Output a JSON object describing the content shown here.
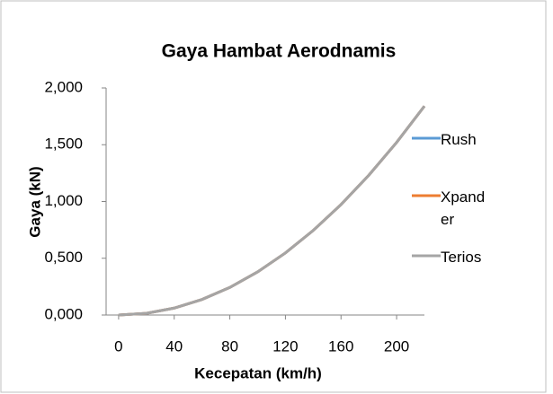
{
  "chart_data": {
    "type": "line",
    "title": "Gaya Hambat Aerodnamis",
    "x_label": "Kecepatan (km/h)",
    "y_label": "Gaya (kN)",
    "x": [
      0,
      20,
      40,
      60,
      80,
      100,
      120,
      140,
      160,
      180,
      200,
      220
    ],
    "series": [
      {
        "name": "Rush",
        "color": "#5b9bd5",
        "values": [
          0,
          0.015,
          0.061,
          0.137,
          0.243,
          0.38,
          0.547,
          0.745,
          0.973,
          1.231,
          1.52,
          1.84
        ]
      },
      {
        "name": "Xpander",
        "color": "#ed7d31",
        "values": [
          0,
          0.015,
          0.061,
          0.137,
          0.243,
          0.38,
          0.547,
          0.745,
          0.973,
          1.231,
          1.52,
          1.84
        ]
      },
      {
        "name": "Terios",
        "color": "#a5a5a5",
        "values": [
          0,
          0.015,
          0.061,
          0.137,
          0.243,
          0.38,
          0.547,
          0.745,
          0.973,
          1.231,
          1.52,
          1.84
        ]
      }
    ],
    "xlim": [
      -9,
      220
    ],
    "xticks": [
      0,
      40,
      80,
      120,
      160,
      200
    ],
    "ylim": [
      0,
      2
    ],
    "yticks": [
      {
        "value": 0,
        "label": "0,000"
      },
      {
        "value": 0.5,
        "label": "0,500"
      },
      {
        "value": 1,
        "label": "1,000"
      },
      {
        "value": 1.5,
        "label": "1,500"
      },
      {
        "value": 2,
        "label": "2,000"
      }
    ],
    "legend": "right"
  }
}
